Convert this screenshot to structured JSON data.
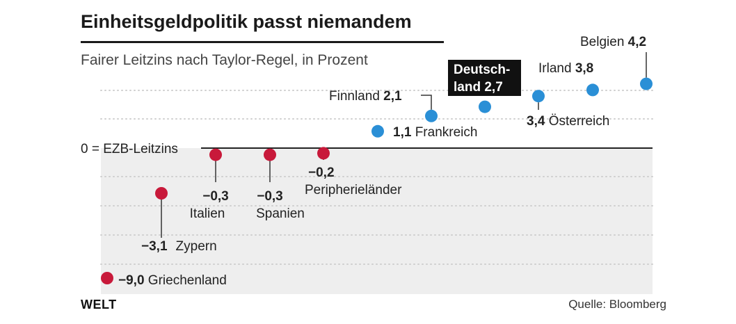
{
  "title": "Einheitsgeldpolitik passt niemandem",
  "subtitle": "Fairer Leitzins nach Taylor-Regel, in Prozent",
  "brand": "WELT",
  "source": "Quelle: Bloomberg",
  "chart_data": {
    "type": "scatter",
    "baseline_label": "0 = EZB-Leitzins",
    "ylim": [
      -9.5,
      5
    ],
    "grid": true,
    "colors": {
      "positive": "#2a8fd6",
      "negative": "#c8193a",
      "highlight_bg": "#111111",
      "negative_area": "#eeeeee"
    },
    "points": [
      {
        "name": "Griechenland",
        "value": -9.0,
        "value_label": "−9,0"
      },
      {
        "name": "Zypern",
        "value": -3.1,
        "value_label": "−3,1"
      },
      {
        "name": "Italien",
        "value": -0.3,
        "value_label": "−0,3"
      },
      {
        "name": "Spanien",
        "value": -0.3,
        "value_label": "−0,3"
      },
      {
        "name": "Peripherieländer",
        "value": -0.2,
        "value_label": "−0,2"
      },
      {
        "name": "Frankreich",
        "value": 1.1,
        "value_label": "1,1"
      },
      {
        "name": "Finnland",
        "value": 2.1,
        "value_label": "2,1"
      },
      {
        "name": "Deutschland",
        "name_lines": [
          "Deutsch-",
          "land"
        ],
        "value": 2.7,
        "value_label": "2,7",
        "highlight": true
      },
      {
        "name": "Österreich",
        "value": 3.4,
        "value_label": "3,4"
      },
      {
        "name": "Irland",
        "value": 3.8,
        "value_label": "3,8"
      },
      {
        "name": "Belgien",
        "value": 4.2,
        "value_label": "4,2"
      }
    ]
  }
}
